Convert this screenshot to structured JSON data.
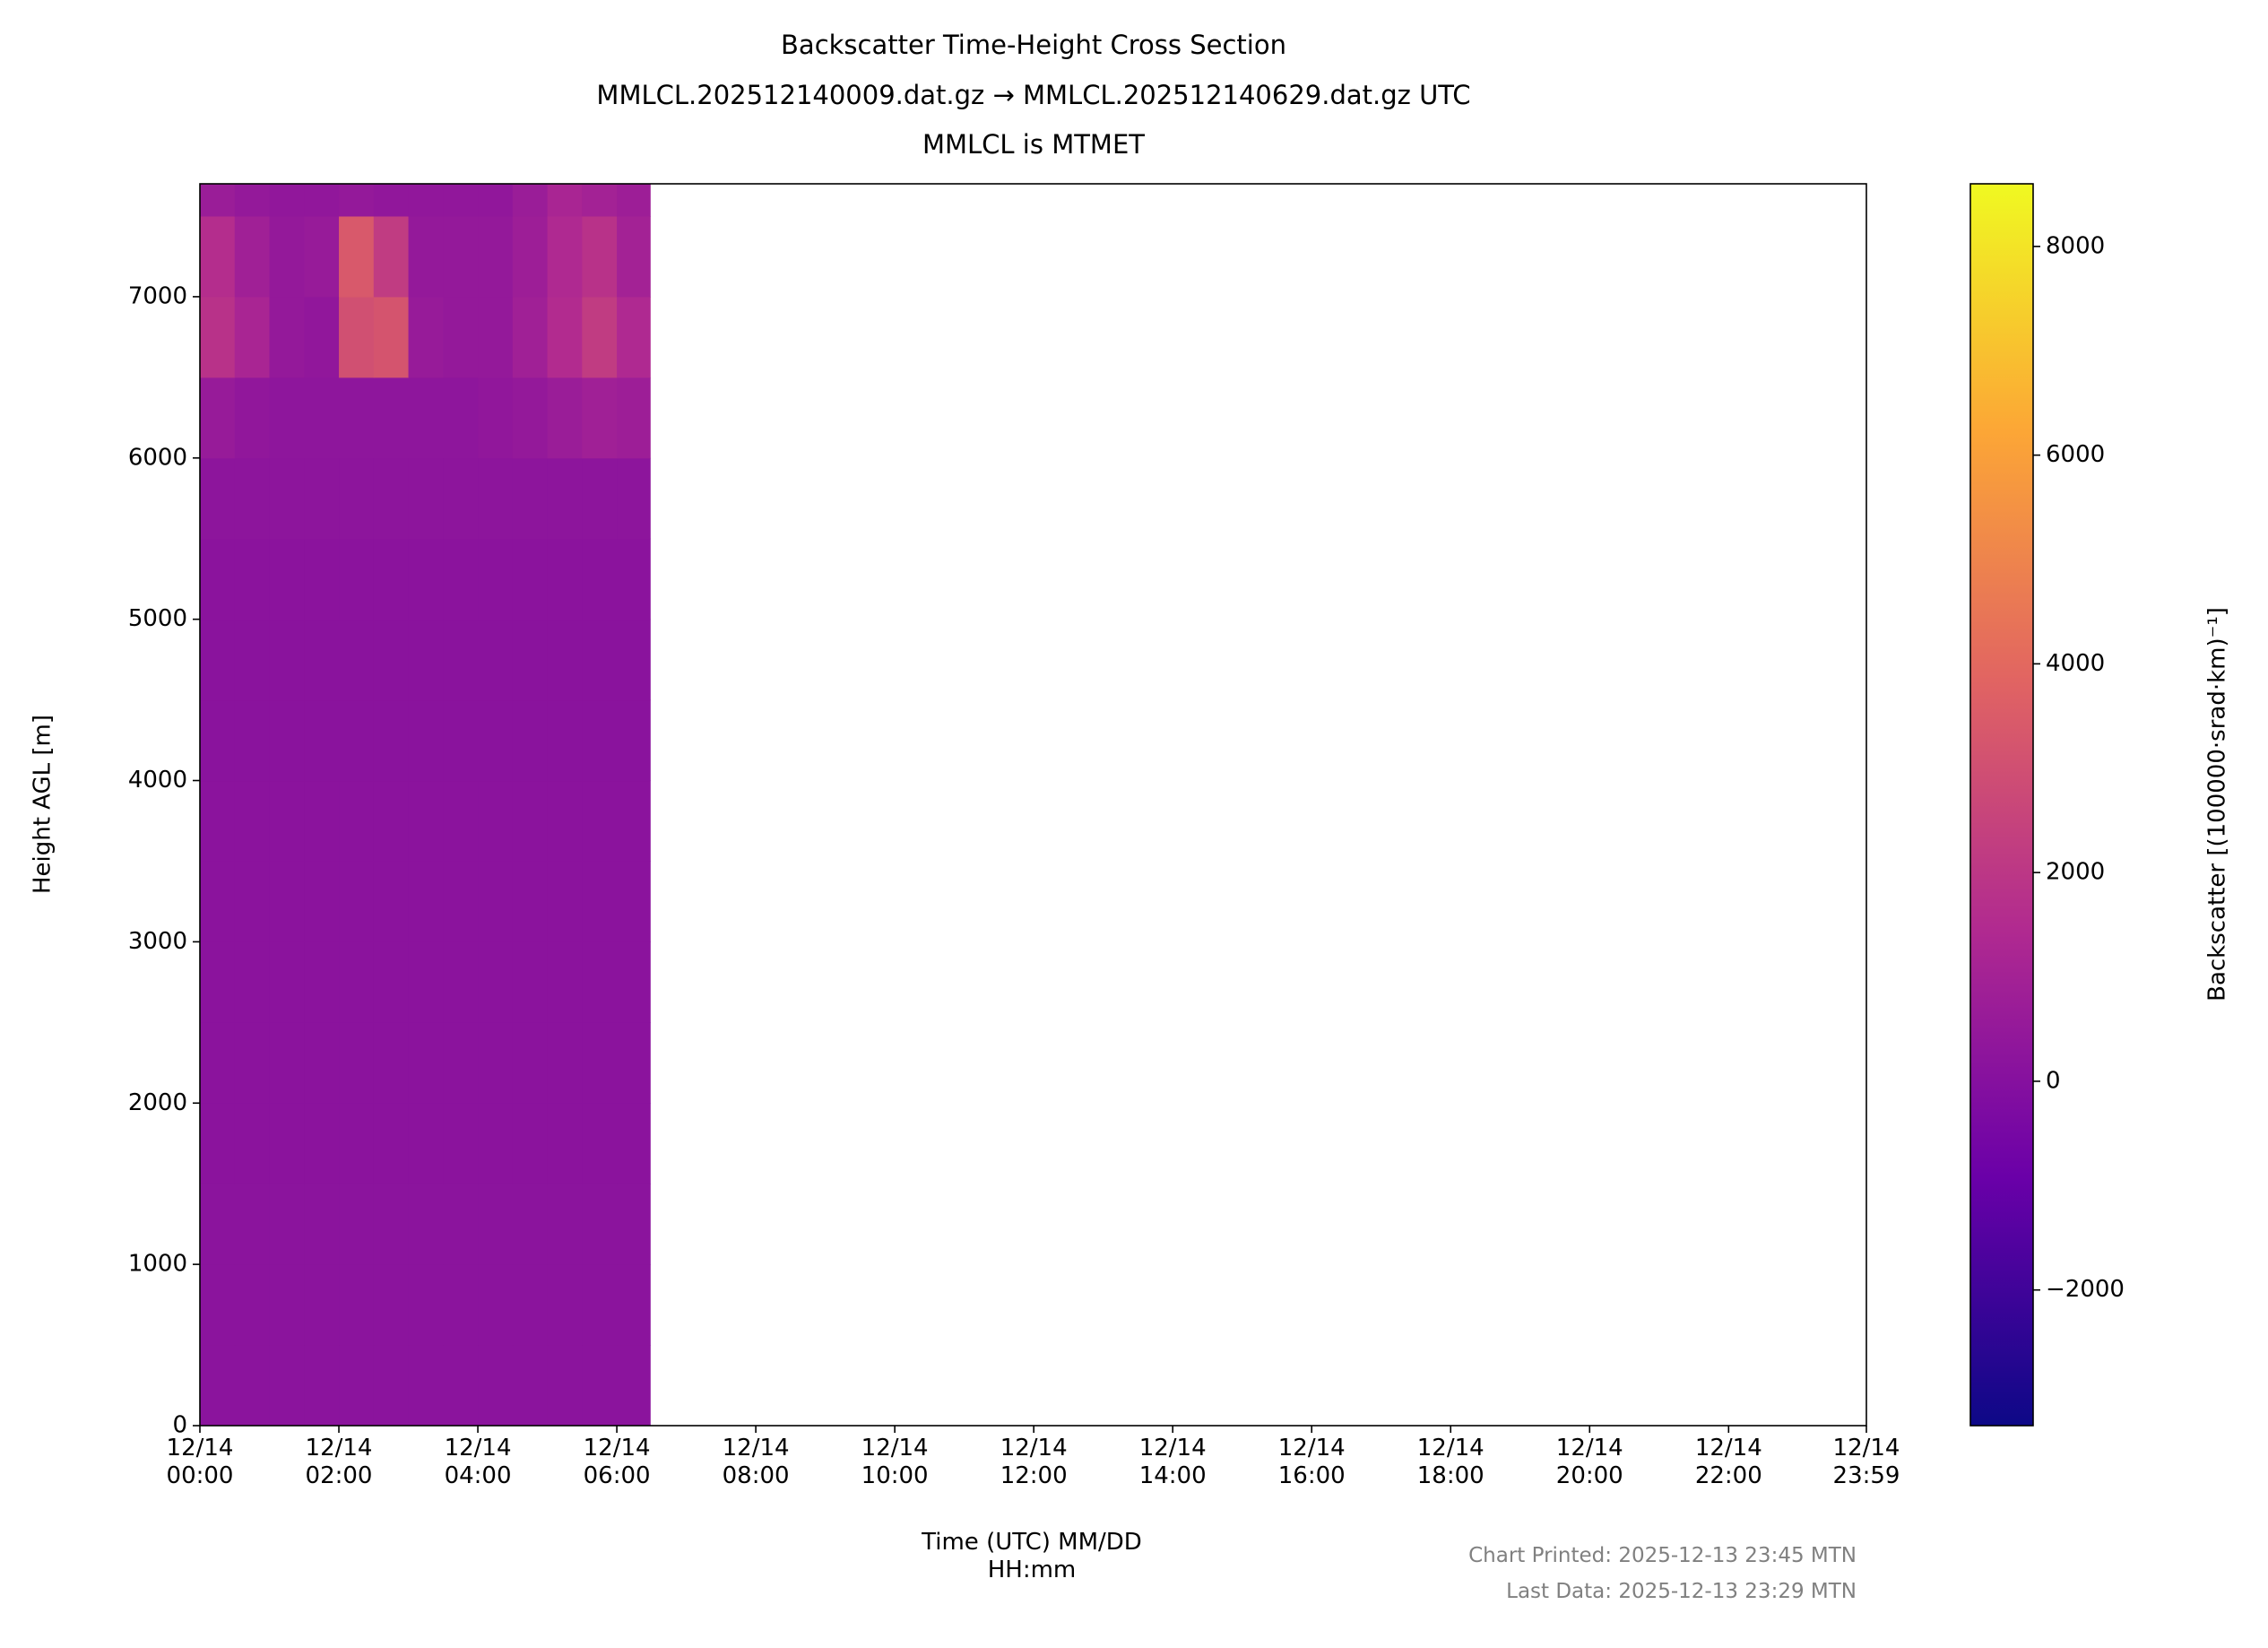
{
  "chart_data": {
    "type": "heatmap",
    "title": "Backscatter Time-Height Cross Section",
    "subtitle": [
      "MMLCL.202512140009.dat.gz → MMLCL.202512140629.dat.gz UTC",
      "MMLCL is MTMET"
    ],
    "x_label": "Time (UTC) MM/DD\nHH:mm",
    "y_label": "Height AGL [m]",
    "colorbar_label": "Backscatter [(100000·srad·km)⁻¹]",
    "footnotes": [
      "Chart Printed: 2025-12-13 23:45 MTN",
      "Last Data: 2025-12-13 23:29 MTN"
    ],
    "xlim": [
      0,
      23.983
    ],
    "xticks": [
      {
        "value": 0,
        "label": "12/14\n00:00"
      },
      {
        "value": 2,
        "label": "12/14\n02:00"
      },
      {
        "value": 4,
        "label": "12/14\n04:00"
      },
      {
        "value": 6,
        "label": "12/14\n06:00"
      },
      {
        "value": 8,
        "label": "12/14\n08:00"
      },
      {
        "value": 10,
        "label": "12/14\n10:00"
      },
      {
        "value": 12,
        "label": "12/14\n12:00"
      },
      {
        "value": 14,
        "label": "12/14\n14:00"
      },
      {
        "value": 16,
        "label": "12/14\n16:00"
      },
      {
        "value": 18,
        "label": "12/14\n18:00"
      },
      {
        "value": 20,
        "label": "12/14\n20:00"
      },
      {
        "value": 22,
        "label": "12/14\n22:00"
      },
      {
        "value": 23.983,
        "label": "12/14\n23:59"
      }
    ],
    "ylim": [
      0,
      7700
    ],
    "yticks": [
      0,
      1000,
      2000,
      3000,
      4000,
      5000,
      6000,
      7000
    ],
    "clim": [
      -3300,
      8600
    ],
    "cticks": [
      {
        "value": -2000,
        "label": "−2000"
      },
      0,
      2000,
      4000,
      6000,
      8000
    ],
    "colormap": [
      "#0d0887",
      "#6a00a8",
      "#b12a90",
      "#e16462",
      "#fca636",
      "#f0f921"
    ],
    "x_edges": [
      0,
      0.5,
      1,
      1.5,
      2,
      2.5,
      3,
      3.5,
      4,
      4.5,
      5,
      5.5,
      6,
      6.48
    ],
    "y_edges": [
      0,
      500,
      1000,
      1500,
      2000,
      2500,
      3000,
      3500,
      4000,
      4500,
      5000,
      5500,
      6000,
      6500,
      7000,
      7500,
      7700
    ],
    "z": [
      [
        200,
        200,
        200,
        200,
        200,
        200,
        200,
        200,
        200,
        200,
        200,
        200,
        200
      ],
      [
        200,
        200,
        200,
        200,
        200,
        200,
        200,
        200,
        200,
        200,
        200,
        200,
        200
      ],
      [
        190,
        190,
        190,
        190,
        190,
        190,
        190,
        190,
        190,
        190,
        190,
        190,
        190
      ],
      [
        180,
        180,
        180,
        180,
        180,
        180,
        180,
        180,
        180,
        180,
        180,
        180,
        180
      ],
      [
        180,
        180,
        180,
        180,
        180,
        180,
        180,
        180,
        180,
        180,
        180,
        180,
        180
      ],
      [
        170,
        170,
        170,
        170,
        170,
        170,
        170,
        170,
        170,
        170,
        170,
        170,
        170
      ],
      [
        170,
        170,
        170,
        170,
        170,
        170,
        170,
        170,
        170,
        170,
        170,
        170,
        170
      ],
      [
        170,
        170,
        170,
        170,
        170,
        170,
        170,
        170,
        170,
        170,
        170,
        170,
        170
      ],
      [
        160,
        160,
        160,
        160,
        160,
        160,
        160,
        160,
        160,
        160,
        160,
        160,
        160
      ],
      [
        160,
        160,
        160,
        160,
        160,
        160,
        160,
        160,
        160,
        160,
        160,
        160,
        160
      ],
      [
        180,
        180,
        180,
        180,
        180,
        180,
        180,
        180,
        180,
        180,
        180,
        180,
        180
      ],
      [
        250,
        250,
        250,
        250,
        250,
        250,
        250,
        250,
        250,
        250,
        250,
        250,
        250
      ],
      [
        600,
        400,
        300,
        300,
        300,
        300,
        300,
        300,
        400,
        500,
        700,
        900,
        800
      ],
      [
        1800,
        1200,
        500,
        400,
        3000,
        3200,
        600,
        500,
        500,
        900,
        1500,
        2200,
        1400
      ],
      [
        1600,
        900,
        500,
        600,
        3400,
        2200,
        500,
        500,
        500,
        800,
        1400,
        1800,
        1000
      ],
      [
        700,
        500,
        400,
        400,
        500,
        400,
        400,
        400,
        400,
        700,
        1200,
        1000,
        800
      ]
    ]
  }
}
